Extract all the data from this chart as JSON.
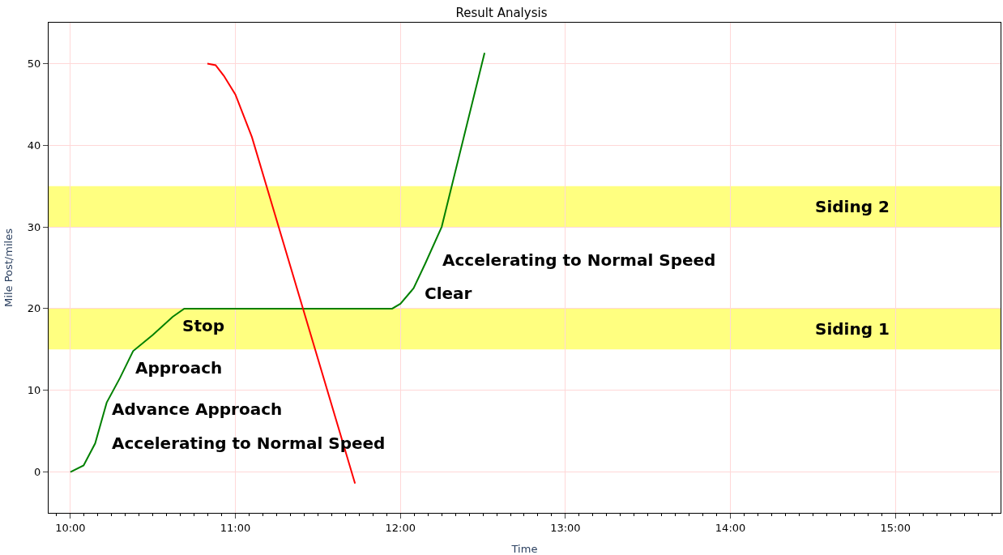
{
  "chart_data": {
    "type": "line",
    "title": "Result Analysis",
    "xlabel": "Time",
    "ylabel": "Mile Post/miles",
    "series": [
      {
        "color": "#008000",
        "x": [
          10.0,
          10.08,
          10.15,
          10.22,
          10.3,
          10.38,
          10.5,
          10.62,
          10.69,
          11.95,
          12.0,
          12.08,
          12.15,
          12.25,
          12.51
        ],
        "values": [
          0,
          0.8,
          3.5,
          8.5,
          11.5,
          14.8,
          16.8,
          19,
          20,
          20,
          20.6,
          22.5,
          25.5,
          30,
          51.3
        ]
      },
      {
        "color": "#ff0000",
        "x": [
          10.83,
          10.88,
          10.93,
          11.0,
          11.1,
          11.725
        ],
        "values": [
          50,
          49.8,
          48.5,
          46.2,
          41,
          -1.4
        ]
      }
    ],
    "bands": [
      {
        "axis": "y",
        "from": 15,
        "to": 20,
        "label": "Siding 1",
        "color": "#ffff80"
      },
      {
        "axis": "y",
        "from": 30,
        "to": 35,
        "label": "Siding 2",
        "color": "#ffff80"
      }
    ],
    "annotations": [
      "Stop",
      "Approach",
      "Advance Approach",
      "Accelerating to Normal Speed",
      "Clear",
      "Accelerating to Normal Speed"
    ],
    "xlim": [
      9.868,
      15.637
    ],
    "ylim": [
      -5,
      55
    ],
    "xticks": [
      {
        "value": 10,
        "label": "10:00"
      },
      {
        "value": 11,
        "label": "11:00"
      },
      {
        "value": 12,
        "label": "12:00"
      },
      {
        "value": 13,
        "label": "13:00"
      },
      {
        "value": 14,
        "label": "14:00"
      },
      {
        "value": 15,
        "label": "15:00"
      }
    ],
    "yticks": [
      0,
      10,
      20,
      30,
      40,
      50
    ],
    "grid": true,
    "line_style": "solid",
    "marker": "none"
  }
}
